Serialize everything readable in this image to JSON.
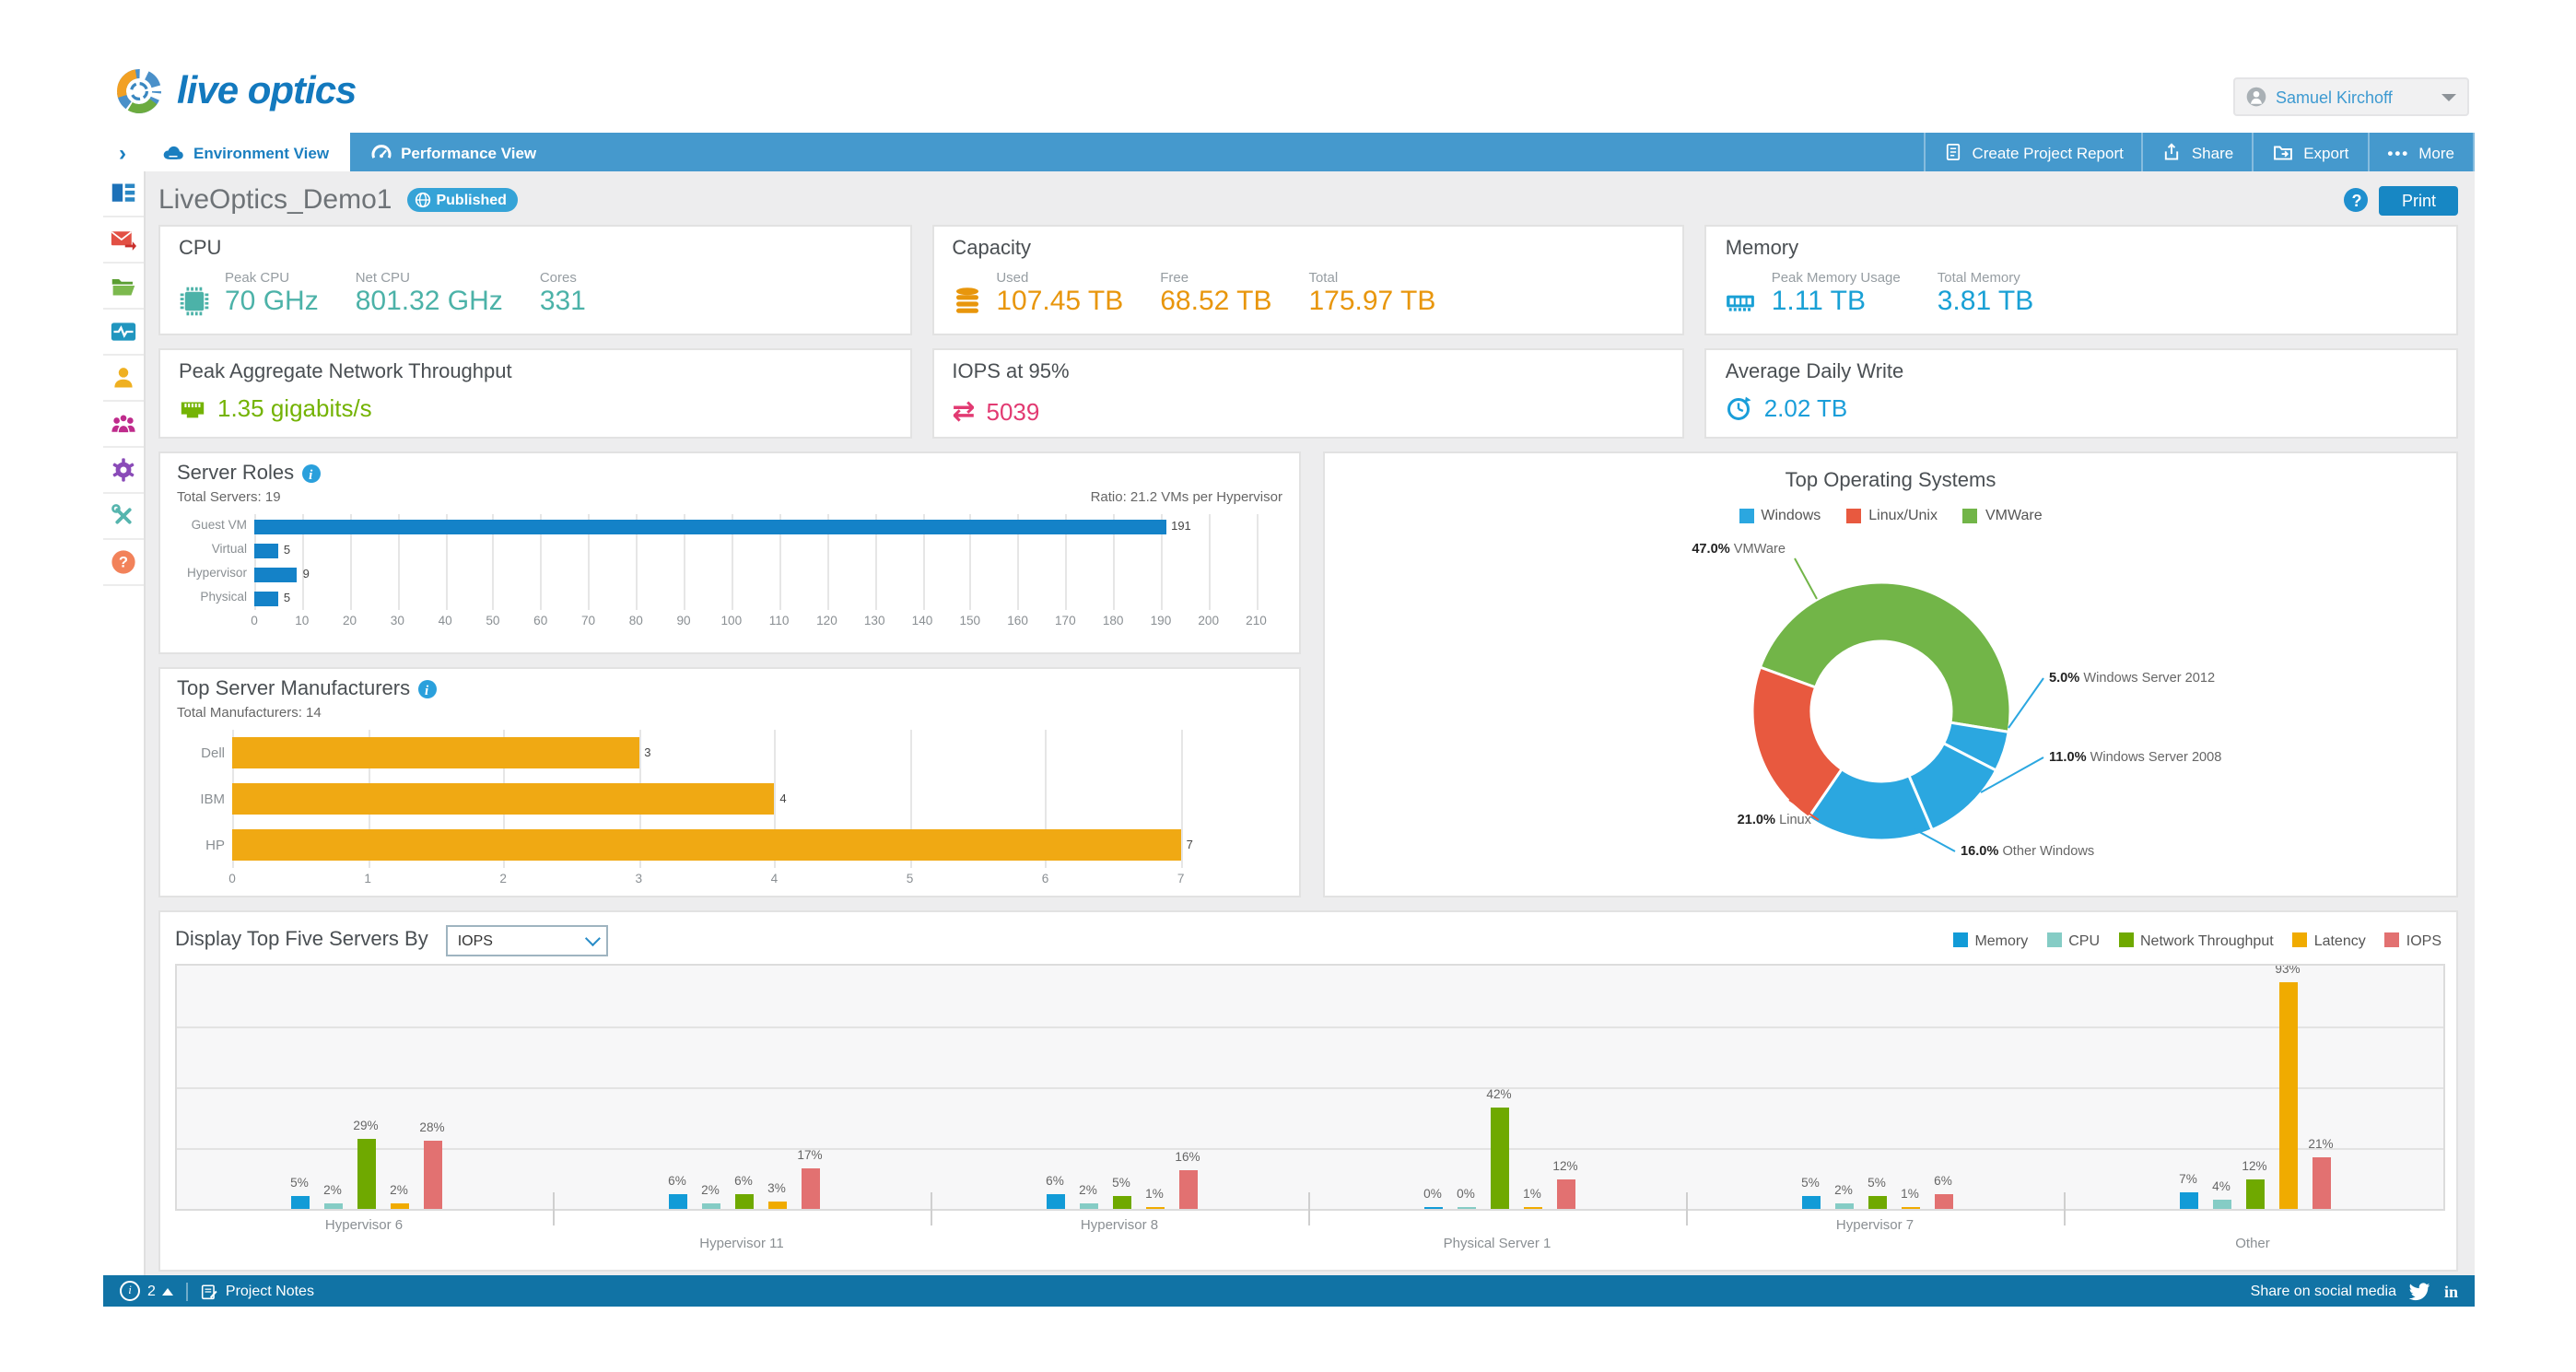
{
  "brand": {
    "name": "live optics"
  },
  "header": {
    "user_name": "Samuel Kirchoff"
  },
  "nav": {
    "tabs": [
      {
        "label": "Environment View",
        "active": true,
        "icon": "cloud-server-icon"
      },
      {
        "label": "Performance View",
        "active": false,
        "icon": "gauge-icon"
      }
    ],
    "actions": [
      {
        "label": "Create Project Report",
        "icon": "report-document-icon"
      },
      {
        "label": "Share",
        "icon": "share-icon"
      },
      {
        "label": "Export",
        "icon": "export-folder-icon"
      },
      {
        "label": "More",
        "icon": "ellipsis-icon"
      }
    ]
  },
  "sidebar": {
    "items": [
      {
        "icon": "dashboard-icon"
      },
      {
        "icon": "mail-icon"
      },
      {
        "icon": "folder-icon"
      },
      {
        "icon": "activity-monitor-icon"
      },
      {
        "icon": "user-icon"
      },
      {
        "icon": "users-group-icon"
      },
      {
        "icon": "gear-icon"
      },
      {
        "icon": "tools-icon"
      },
      {
        "icon": "help-icon"
      }
    ]
  },
  "project": {
    "title": "LiveOptics_Demo1",
    "badge": "Published",
    "help": "?",
    "print_label": "Print"
  },
  "cards": {
    "cpu": {
      "title": "CPU",
      "color": "#4cb2a8",
      "metrics": [
        {
          "label": "Peak CPU",
          "value": "70 GHz"
        },
        {
          "label": "Net CPU",
          "value": "801.32 GHz"
        },
        {
          "label": "Cores",
          "value": "331"
        }
      ]
    },
    "capacity": {
      "title": "Capacity",
      "color": "#e8960c",
      "metrics": [
        {
          "label": "Used",
          "value": "107.45 TB"
        },
        {
          "label": "Free",
          "value": "68.52 TB"
        },
        {
          "label": "Total",
          "value": "175.97 TB"
        }
      ]
    },
    "memory": {
      "title": "Memory",
      "color": "#19a0d5",
      "metrics": [
        {
          "label": "Peak Memory Usage",
          "value": "1.11 TB"
        },
        {
          "label": "Total Memory",
          "value": "3.81 TB"
        }
      ]
    },
    "network": {
      "title": "Peak Aggregate Network Throughput",
      "value": "1.35 gigabits/s",
      "color": "#74b304"
    },
    "iops": {
      "title": "IOPS at 95%",
      "value": "5039",
      "icon_glyph": "⇄",
      "color": "#e23a72"
    },
    "daily_write": {
      "title": "Average Daily Write",
      "value": "2.02 TB",
      "color": "#1a9ed9"
    }
  },
  "charts": {
    "server_roles": {
      "title": "Server Roles",
      "subtitle": "Total Servers: 19",
      "ratio": "Ratio: 21.2 VMs per Hypervisor",
      "chart_data": {
        "type": "bar",
        "orientation": "horizontal",
        "categories": [
          "Guest VM",
          "Virtual",
          "Hypervisor",
          "Physical"
        ],
        "values": [
          191,
          5,
          9,
          5
        ],
        "xmax": 215.5,
        "ticks": [
          0,
          10,
          20,
          30,
          40,
          50,
          60,
          70,
          80,
          90,
          100,
          110,
          120,
          130,
          140,
          150,
          160,
          170,
          180,
          190,
          200,
          210
        ],
        "bar_color": "#1482c8"
      }
    },
    "manufacturers": {
      "title": "Top Server Manufacturers",
      "subtitle": "Total Manufacturers: 14",
      "chart_data": {
        "type": "bar",
        "orientation": "horizontal",
        "categories": [
          "Dell",
          "IBM",
          "HP"
        ],
        "values": [
          3,
          4,
          7
        ],
        "xmax": 7.75,
        "ticks": [
          0,
          1,
          2,
          3,
          4,
          5,
          6,
          7
        ],
        "bar_color": "#f0a913"
      }
    },
    "operating_systems": {
      "title": "Top Operating Systems",
      "legend": [
        {
          "label": "Windows",
          "color": "#2ba7e0"
        },
        {
          "label": "Linux/Unix",
          "color": "#e8593f"
        },
        {
          "label": "VMWare",
          "color": "#72b548"
        }
      ],
      "chart_data": {
        "type": "pie",
        "donut": true,
        "start_angle": 290,
        "slices": [
          {
            "pct": "47.0%",
            "label": "VMWare",
            "value": 47,
            "color": "#72b548"
          },
          {
            "pct": "5.0%",
            "label": "Windows Server 2012",
            "value": 5,
            "color": "#2ba7e0"
          },
          {
            "pct": "11.0%",
            "label": "Windows Server 2008",
            "value": 11,
            "color": "#2ba7e0"
          },
          {
            "pct": "16.0%",
            "label": "Other Windows",
            "value": 16,
            "color": "#2ba7e0"
          },
          {
            "pct": "21.0%",
            "label": "Linux",
            "value": 21,
            "color": "#e8593f"
          }
        ]
      }
    },
    "top_servers": {
      "title": "Display Top Five Servers By",
      "select_value": "IOPS",
      "chart_data": {
        "type": "bar",
        "categories": [
          "Hypervisor 6",
          "Hypervisor 11",
          "Hypervisor 8",
          "Physical Server 1",
          "Hypervisor 7",
          "Other"
        ],
        "series": [
          {
            "name": "Memory",
            "color": "#129bd7",
            "values": [
              5,
              6,
              6,
              0,
              5,
              7
            ]
          },
          {
            "name": "CPU",
            "color": "#85ccc5",
            "values": [
              2,
              2,
              2,
              0,
              2,
              4
            ]
          },
          {
            "name": "Network Throughput",
            "color": "#6fa900",
            "values": [
              29,
              6,
              5,
              42,
              5,
              12
            ]
          },
          {
            "name": "Latency",
            "color": "#f0ab00",
            "values": [
              2,
              3,
              1,
              1,
              1,
              93
            ]
          },
          {
            "name": "IOPS",
            "color": "#e27171",
            "values": [
              28,
              17,
              16,
              12,
              6,
              21
            ]
          }
        ],
        "ylim": [
          0,
          100
        ],
        "grid_step": 25,
        "unit": "%"
      }
    }
  },
  "footer": {
    "notification_count": "2",
    "notes_label": "Project Notes",
    "share_label": "Share on social media"
  },
  "palette": {
    "nav_blue": "#4599cd",
    "accent_blue": "#1b7fc0",
    "footer_blue": "#1173a5"
  }
}
